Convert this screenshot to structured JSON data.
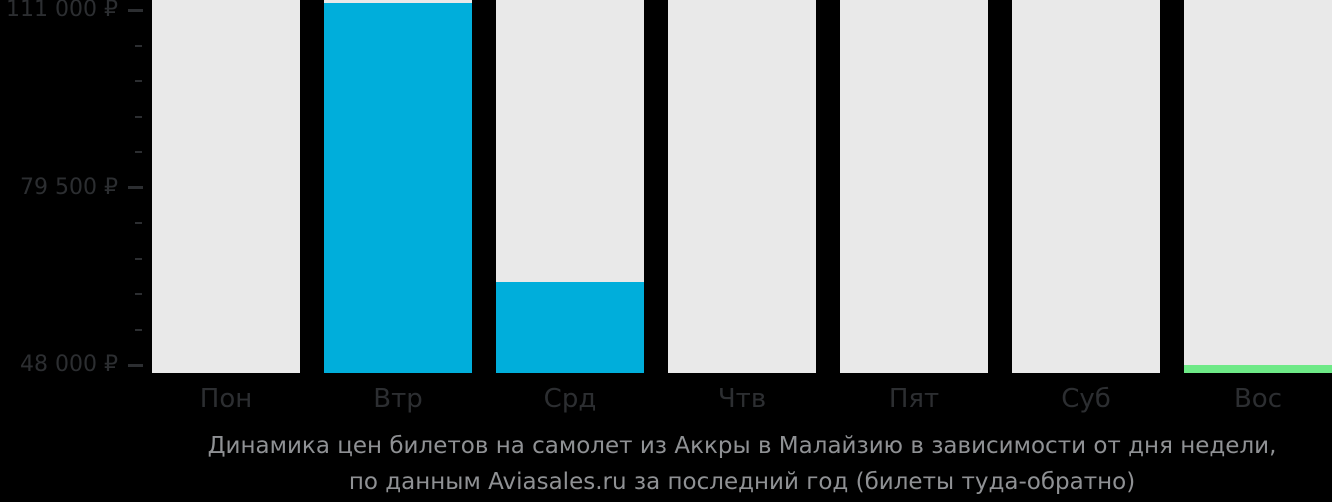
{
  "chart_data": {
    "type": "bar",
    "title": "Динамика цен билетов на самолет из Аккры в Малайзию в зависимости от дня недели, по данным Aviasales.ru за последний год (билеты туда-обратно)",
    "caption_lines": [
      "Динамика цен билетов на самолет из Аккры в Малайзию в зависимости от дня недели,",
      "по данным Aviasales.ru за последний год (билеты туда-обратно)"
    ],
    "categories": [
      "Пон",
      "Втр",
      "Срд",
      "Чтв",
      "Пят",
      "Суб",
      "Вос"
    ],
    "values": [
      null,
      112300,
      62700,
      null,
      null,
      null,
      48000
    ],
    "bar_colors": [
      null,
      "#00aedb",
      "#00aedb",
      null,
      null,
      null,
      "#6ee987"
    ],
    "ylim": [
      48000,
      111000
    ],
    "yticks": [
      {
        "value": 111000,
        "label": "111 000 ₽"
      },
      {
        "value": 79500,
        "label": "79 500 ₽"
      },
      {
        "value": 48000,
        "label": "48 000 ₽"
      }
    ],
    "minor_ticks_between_majors": 4,
    "grid": false,
    "legend": false,
    "xlabel": "",
    "ylabel": "",
    "currency_symbol": "₽"
  },
  "colors": {
    "background": "#000000",
    "bar_default": "#00aedb",
    "bar_min": "#6ee987",
    "track": "#e9e9e9",
    "axis_label": "#2c2e31",
    "caption": "#8f9194"
  }
}
